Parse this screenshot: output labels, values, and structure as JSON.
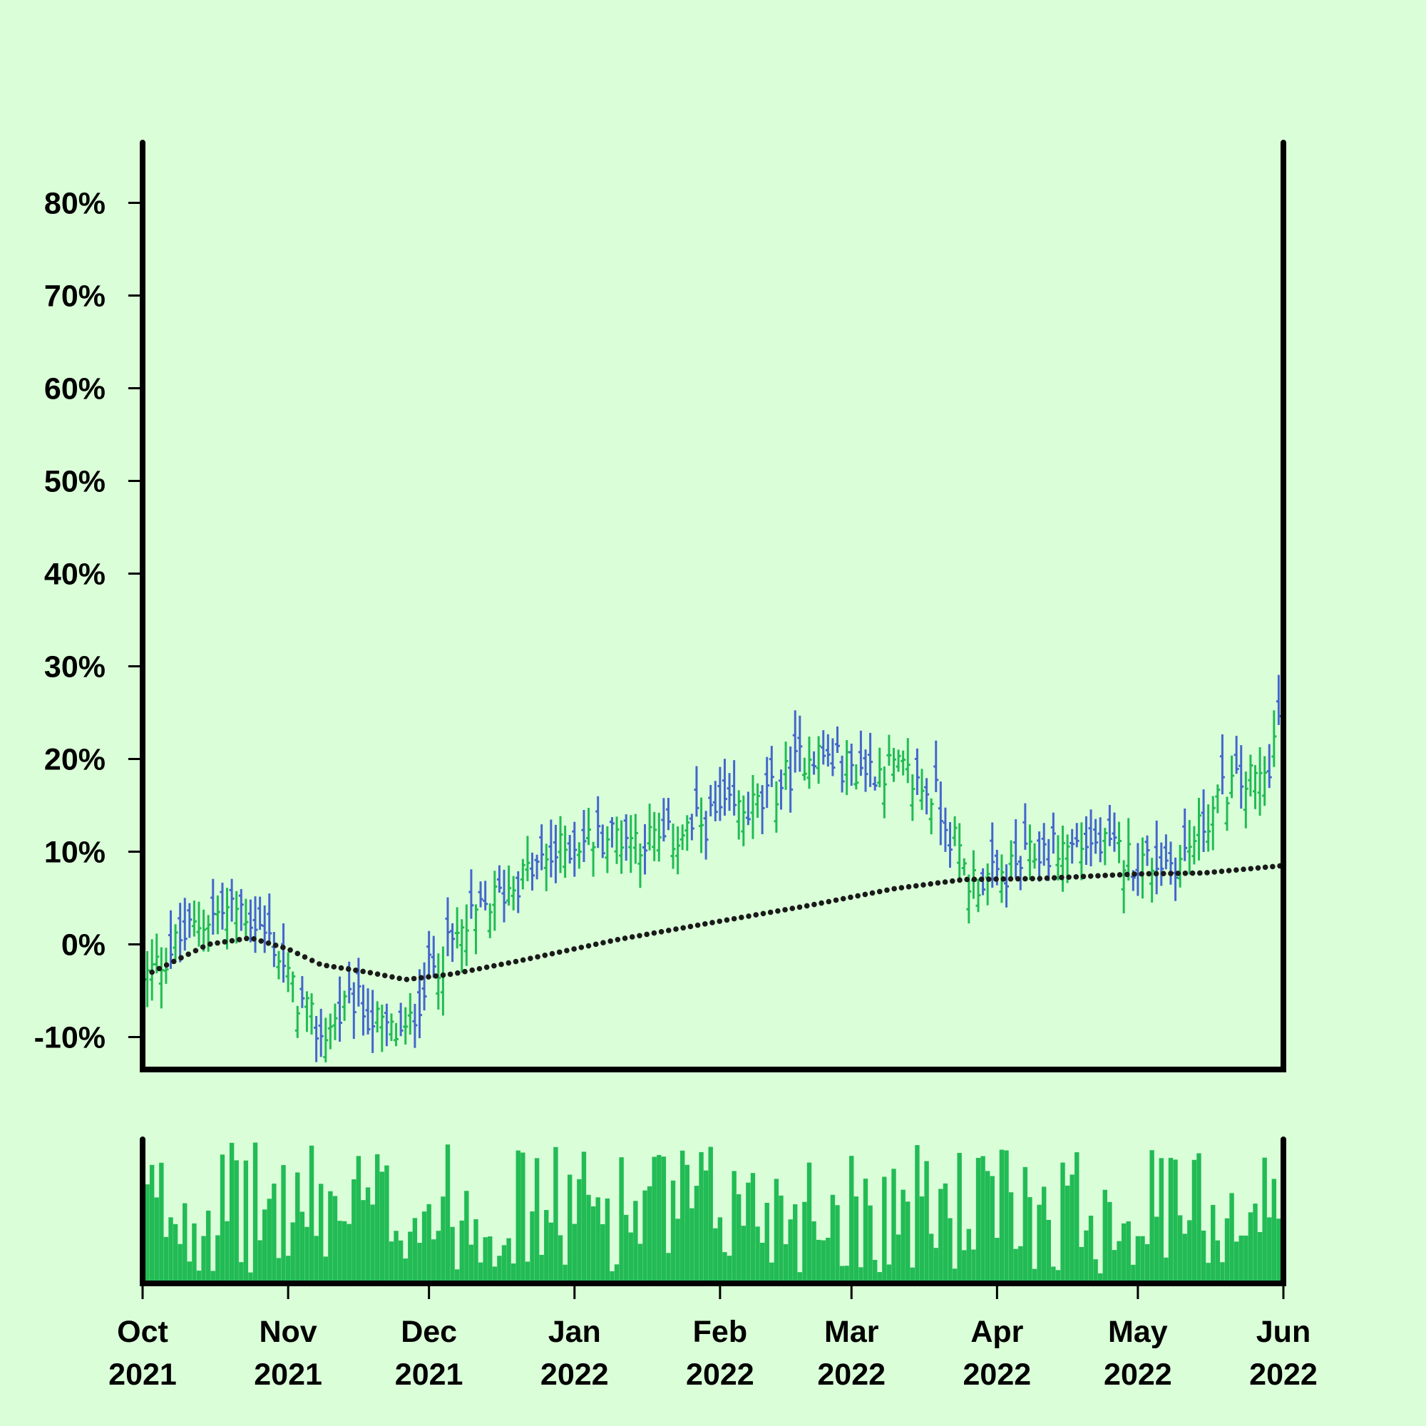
{
  "chart_data": [
    {
      "type": "ohlc",
      "x_ticks": [
        "Oct 2021",
        "Nov 2021",
        "Dec 2021",
        "Jan 2022",
        "Feb 2022",
        "Mar 2022",
        "Apr 2022",
        "May 2022",
        "Jun 2022"
      ],
      "y_ticks": [
        "-10%",
        "0%",
        "10%",
        "20%",
        "30%",
        "40%",
        "50%",
        "60%",
        "70%",
        "80%"
      ],
      "y_tick_values": [
        -10,
        0,
        10,
        20,
        30,
        40,
        50,
        60,
        70,
        80
      ],
      "ylim": [
        -13.5,
        86.5
      ],
      "xlim": [
        "2021-10-01",
        "2022-06-01"
      ],
      "grid": false,
      "up_color": "#22bb55",
      "down_color": "#4466cc",
      "moving_average_color": "#1a1a1a",
      "close_trend": [
        [
          "2021-10-01",
          -4
        ],
        [
          "2021-10-08",
          0
        ],
        [
          "2021-10-15",
          3
        ],
        [
          "2021-10-22",
          4
        ],
        [
          "2021-10-29",
          0
        ],
        [
          "2021-11-02",
          -5
        ],
        [
          "2021-11-08",
          -10
        ],
        [
          "2021-11-15",
          -6
        ],
        [
          "2021-11-21",
          -9
        ],
        [
          "2021-11-26",
          -10
        ],
        [
          "2021-12-01",
          -3
        ],
        [
          "2021-12-06",
          0
        ],
        [
          "2021-12-13",
          4
        ],
        [
          "2021-12-20",
          7
        ],
        [
          "2022-01-01",
          11
        ],
        [
          "2022-01-10",
          12
        ],
        [
          "2022-01-20",
          11
        ],
        [
          "2022-02-01",
          14
        ],
        [
          "2022-02-10",
          15
        ],
        [
          "2022-02-20",
          21
        ],
        [
          "2022-03-01",
          19
        ],
        [
          "2022-03-10",
          19
        ],
        [
          "2022-03-19",
          16
        ],
        [
          "2022-03-26",
          7
        ],
        [
          "2022-04-01",
          7
        ],
        [
          "2022-04-10",
          10
        ],
        [
          "2022-04-20",
          11
        ],
        [
          "2022-05-01",
          9
        ],
        [
          "2022-05-10",
          9
        ],
        [
          "2022-05-20",
          17
        ],
        [
          "2022-05-28",
          18
        ],
        [
          "2022-06-01",
          26
        ]
      ],
      "moving_average": [
        [
          "2021-10-01",
          -3.5
        ],
        [
          "2021-10-15",
          0
        ],
        [
          "2021-10-24",
          0.7
        ],
        [
          "2021-11-01",
          -0.5
        ],
        [
          "2021-11-08",
          -2.2
        ],
        [
          "2021-11-18",
          -3
        ],
        [
          "2021-11-26",
          -3.8
        ],
        [
          "2021-12-06",
          -3.2
        ],
        [
          "2021-12-20",
          -1.8
        ],
        [
          "2022-01-10",
          0.5
        ],
        [
          "2022-02-01",
          2.5
        ],
        [
          "2022-02-20",
          4.2
        ],
        [
          "2022-03-10",
          6
        ],
        [
          "2022-03-25",
          7
        ],
        [
          "2022-04-10",
          7.1
        ],
        [
          "2022-05-01",
          7.6
        ],
        [
          "2022-05-15",
          7.7
        ],
        [
          "2022-06-01",
          8.5
        ]
      ]
    },
    {
      "type": "bar",
      "role": "volume",
      "color": "#22bb55"
    }
  ]
}
